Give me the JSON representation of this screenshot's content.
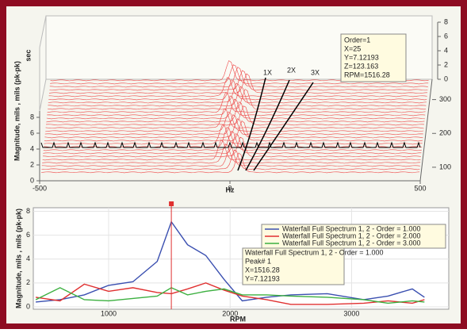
{
  "chart_data": [
    {
      "type": "waterfall",
      "xlabel": "Hz",
      "ylabel": "Magnitude, mils , mils (pk-pk)",
      "ylabel_unit": "sec",
      "xlim": [
        -500,
        500
      ],
      "xticks": [
        -500,
        0,
        500
      ],
      "ylim": [
        0,
        8
      ],
      "yticks": [
        0,
        2,
        4,
        6,
        8
      ],
      "zlim": [
        0,
        8
      ],
      "zticks": [
        0,
        2,
        4,
        6,
        8
      ],
      "tlim": [
        60,
        360
      ],
      "tticks": [
        100,
        200,
        300
      ],
      "order_labels": [
        "1X",
        "2X",
        "3X"
      ],
      "annotation": [
        "Order=1",
        "X=25",
        "Y=7.12193",
        "Z=123.163",
        "RPM=1516.28"
      ]
    },
    {
      "type": "line",
      "xlabel": "RPM",
      "ylabel": "Magnitude, mils , mils (pk-pk)",
      "xlim": [
        380,
        3800
      ],
      "xticks": [
        1000,
        2000,
        3000
      ],
      "ylim": [
        -0.2,
        8.3
      ],
      "yticks": [
        0,
        2,
        4,
        6,
        8
      ],
      "grid": true,
      "x": [
        400,
        600,
        800,
        1000,
        1200,
        1400,
        1516.28,
        1650,
        1800,
        1950,
        2100,
        2300,
        2500,
        2800,
        3100,
        3300,
        3500,
        3600
      ],
      "series": [
        {
          "name": "Waterfall Full Spectrum 1, 2 - Order = 1.000",
          "color": "#3a4fb0",
          "values": [
            0.4,
            0.6,
            1.0,
            1.8,
            2.1,
            3.8,
            7.12193,
            5.2,
            4.3,
            2.3,
            0.5,
            0.8,
            1.0,
            1.1,
            0.6,
            0.9,
            1.5,
            0.8
          ]
        },
        {
          "name": "Waterfall Full Spectrum 1, 2 - Order = 2.000",
          "color": "#e03030",
          "values": [
            0.8,
            0.5,
            1.9,
            1.3,
            1.6,
            1.2,
            1.1,
            1.5,
            2.0,
            1.4,
            0.9,
            0.6,
            0.2,
            0.2,
            0.3,
            0.5,
            0.3,
            0.6
          ]
        },
        {
          "name": "Waterfall Full Spectrum 1, 2 - Order = 3.000",
          "color": "#3cb040",
          "values": [
            0.6,
            1.6,
            0.6,
            0.5,
            0.7,
            0.9,
            1.6,
            1.0,
            1.3,
            1.5,
            1.0,
            1.0,
            0.9,
            0.8,
            0.6,
            0.3,
            0.5,
            0.4
          ]
        }
      ],
      "annotation": [
        "Waterfall Full Spectrum 1, 2 - Order = 1.000",
        "Peak# 1",
        "X=1516.28",
        "Y=7.12193"
      ]
    }
  ]
}
